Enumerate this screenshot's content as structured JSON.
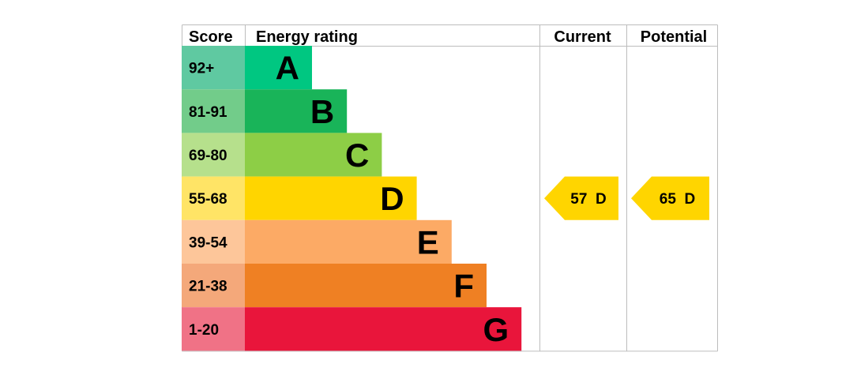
{
  "chart_data": {
    "type": "table",
    "headers": {
      "score": "Score",
      "rating": "Energy rating",
      "current": "Current",
      "potential": "Potential"
    },
    "bands": [
      {
        "letter": "A",
        "range": "92+",
        "min": 92,
        "max": 100,
        "color": "#00c781",
        "score_bg": "#5fc9a1"
      },
      {
        "letter": "B",
        "range": "81-91",
        "min": 81,
        "max": 91,
        "color": "#19b459",
        "score_bg": "#72cc8a"
      },
      {
        "letter": "C",
        "range": "69-80",
        "min": 69,
        "max": 80,
        "color": "#8dce46",
        "score_bg": "#b6e08c"
      },
      {
        "letter": "D",
        "range": "55-68",
        "min": 55,
        "max": 68,
        "color": "#ffd500",
        "score_bg": "#ffe466"
      },
      {
        "letter": "E",
        "range": "39-54",
        "min": 39,
        "max": 54,
        "color": "#fcaa65",
        "score_bg": "#fdc69a"
      },
      {
        "letter": "F",
        "range": "21-38",
        "min": 21,
        "max": 38,
        "color": "#ef8023",
        "score_bg": "#f4a87a"
      },
      {
        "letter": "G",
        "range": "1-20",
        "min": 1,
        "max": 20,
        "color": "#e9153b",
        "score_bg": "#f07286"
      }
    ],
    "current": {
      "score": 57,
      "band": "D",
      "label": "57  D"
    },
    "potential": {
      "score": 65,
      "band": "D",
      "label": "65  D"
    }
  }
}
